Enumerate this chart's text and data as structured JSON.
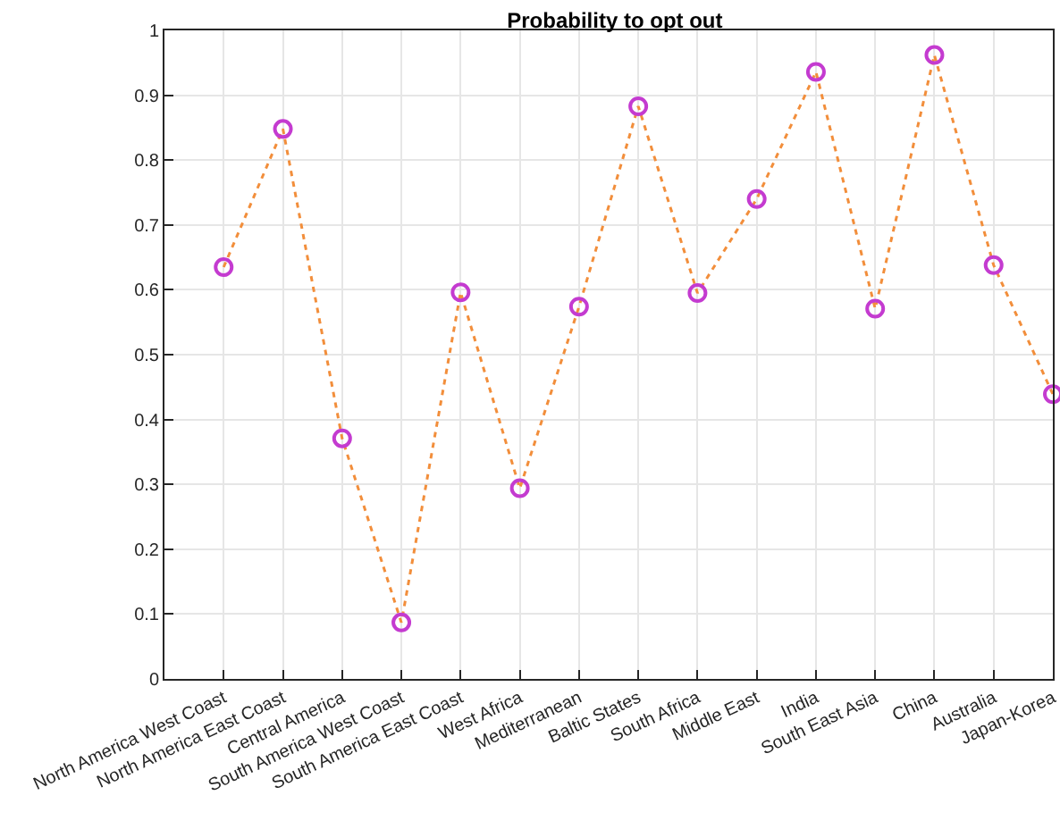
{
  "chart_data": {
    "type": "line",
    "title": "Probability to opt out",
    "categories": [
      "North America West Coast",
      "North America East Coast",
      "Central America",
      "South America West Coast",
      "South America East Coast",
      "West Africa",
      "Mediterranean",
      "Baltic States",
      "South Africa",
      "Middle East",
      "India",
      "South East Asia",
      "China",
      "Australia",
      "Japan-Korea"
    ],
    "series": [
      {
        "color": "#f28e3b",
        "line_style": "dotted",
        "marker": "none",
        "values": [
          0.635,
          0.848,
          0.371,
          0.087,
          0.596,
          0.294,
          0.574,
          0.883,
          0.595,
          0.74,
          0.936,
          0.571,
          0.962,
          0.638,
          0.439
        ]
      },
      {
        "type": "scatter",
        "color": "#c43bd0",
        "marker": "circle",
        "values": [
          0.635,
          0.848,
          0.371,
          0.087,
          0.596,
          0.294,
          0.574,
          0.883,
          0.595,
          0.74,
          0.936,
          0.571,
          0.962,
          0.638,
          0.439
        ]
      }
    ],
    "ylim": [
      0,
      1
    ],
    "yticks": [
      0,
      0.1,
      0.2,
      0.3,
      0.4,
      0.5,
      0.6,
      0.7,
      0.8,
      0.9,
      1
    ],
    "grid": true
  }
}
